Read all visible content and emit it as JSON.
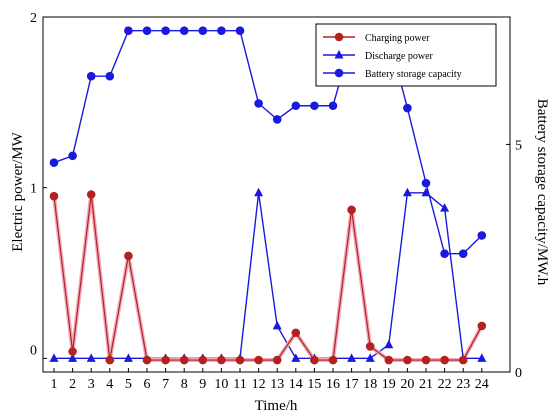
{
  "chart_data": {
    "type": "line",
    "xlabel": "Time/h",
    "ylabel_left": "Electric power/MW",
    "ylabel_right": "Battery storage capacity/MW.h",
    "x": [
      1,
      2,
      3,
      4,
      5,
      6,
      7,
      8,
      9,
      10,
      11,
      12,
      13,
      14,
      15,
      16,
      17,
      18,
      19,
      20,
      21,
      22,
      23,
      24
    ],
    "x_ticks": [
      "1",
      "2",
      "3",
      "4",
      "5",
      "6",
      "7",
      "8",
      "9",
      "10",
      "11",
      "12",
      "13",
      "14",
      "15",
      "16",
      "17",
      "18",
      "19",
      "20",
      "21",
      "22",
      "23",
      "24"
    ],
    "y_left_ticks": [
      "0",
      "1",
      "2"
    ],
    "y_right_ticks": [
      "0",
      "5"
    ],
    "ylim_left": [
      -0.08,
      2
    ],
    "ylim_right": [
      0,
      7.8
    ],
    "series": [
      {
        "name": "Charging power",
        "axis": "left",
        "color": "#b22222",
        "marker": "circle",
        "values": [
          0.95,
          0.04,
          0.96,
          -0.01,
          0.6,
          -0.01,
          -0.01,
          -0.01,
          -0.01,
          -0.01,
          -0.01,
          -0.01,
          -0.01,
          0.15,
          -0.01,
          -0.01,
          0.87,
          0.07,
          -0.01,
          -0.01,
          -0.01,
          -0.01,
          -0.01,
          0.19
        ]
      },
      {
        "name": "Discharge power",
        "axis": "left",
        "color": "#1a1adc",
        "marker": "triangle",
        "values": [
          0,
          0,
          0,
          0,
          0,
          0,
          0,
          0,
          0,
          0,
          0,
          0.97,
          0.19,
          0,
          0,
          0,
          0,
          0,
          0.08,
          0.97,
          0.97,
          0.88,
          0,
          0
        ]
      },
      {
        "name": "Battery storage capacity",
        "axis": "right",
        "color": "#1a1adc",
        "marker": "circle",
        "values": [
          4.6,
          4.75,
          6.5,
          6.5,
          7.5,
          7.5,
          7.5,
          7.5,
          7.5,
          7.5,
          7.5,
          5.9,
          5.55,
          5.85,
          5.85,
          5.85,
          7.3,
          7.45,
          7.35,
          5.8,
          4.15,
          2.6,
          2.6,
          3.0
        ]
      }
    ],
    "legend_position": "top-right",
    "grid": false
  }
}
